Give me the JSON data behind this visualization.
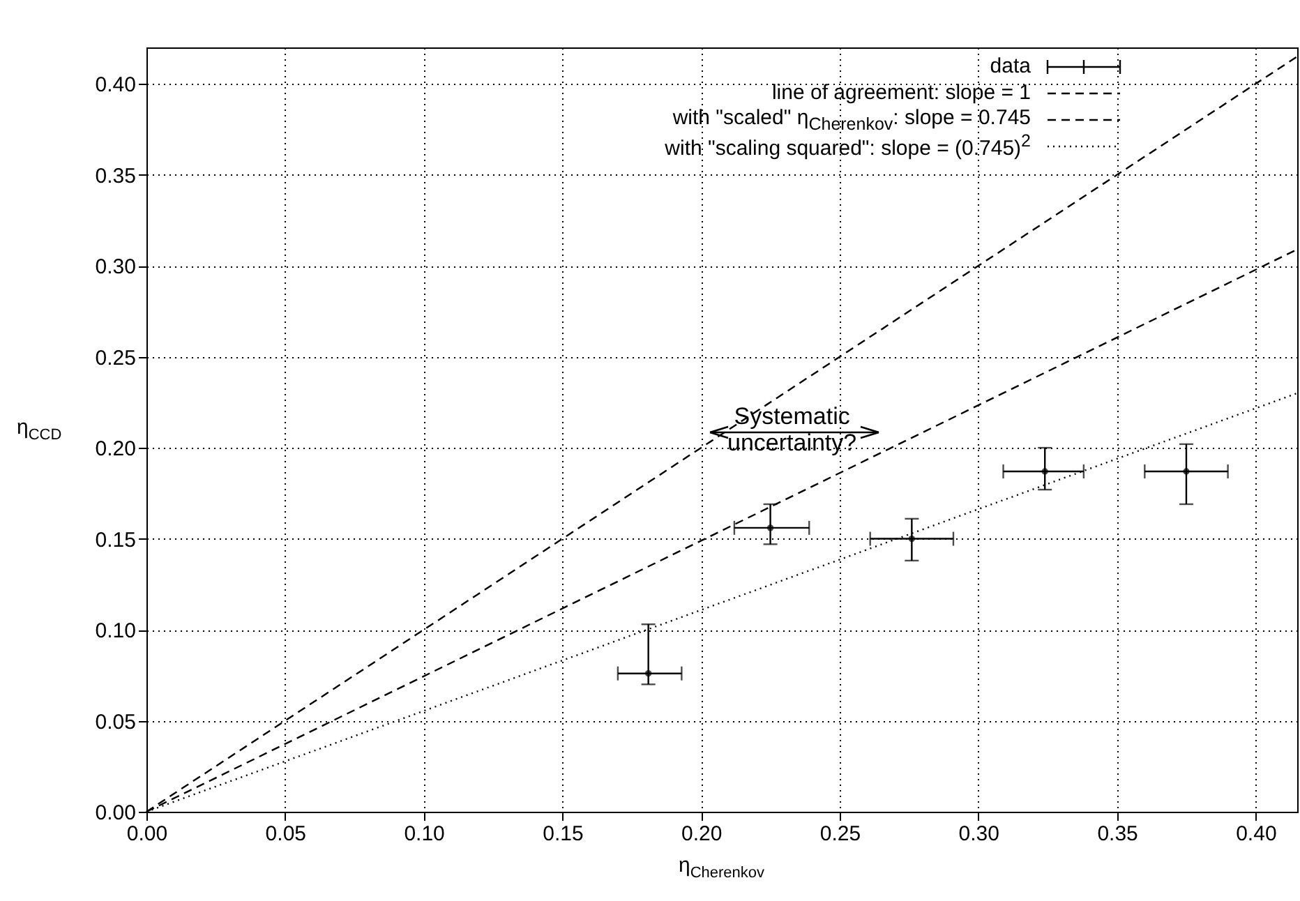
{
  "chart_data": {
    "type": "scatter",
    "xlabel": "η$_{Cherenkov}$",
    "ylabel": "η$_{CCD}$",
    "xlim": [
      0,
      0.415
    ],
    "ylim": [
      0,
      0.42
    ],
    "xticks": [
      {
        "value": 0,
        "label": "0.00"
      },
      {
        "value": 0.05,
        "label": "0.05"
      },
      {
        "value": 0.1,
        "label": "0.10"
      },
      {
        "value": 0.15,
        "label": "0.15"
      },
      {
        "value": 0.2,
        "label": "0.20"
      },
      {
        "value": 0.25,
        "label": "0.25"
      },
      {
        "value": 0.3,
        "label": "0.30"
      },
      {
        "value": 0.35,
        "label": "0.35"
      },
      {
        "value": 0.4,
        "label": "0.40"
      }
    ],
    "yticks": [
      {
        "value": 0,
        "label": "0.00"
      },
      {
        "value": 0.05,
        "label": "0.05"
      },
      {
        "value": 0.1,
        "label": "0.10"
      },
      {
        "value": 0.15,
        "label": "0.15"
      },
      {
        "value": 0.2,
        "label": "0.20"
      },
      {
        "value": 0.25,
        "label": "0.25"
      },
      {
        "value": 0.3,
        "label": "0.30"
      },
      {
        "value": 0.35,
        "label": "0.35"
      },
      {
        "value": 0.4,
        "label": "0.40"
      }
    ],
    "grid": true,
    "legend": "top right",
    "annotations": [
      "Systematic uncertainty?"
    ],
    "series": [
      {
        "name": "data",
        "color": "#000000",
        "x": [
          0.181,
          0.225,
          0.276,
          0.324,
          0.375
        ],
        "values": [
          0.076,
          0.156,
          0.15,
          0.187,
          0.187
        ],
        "errors": [
          [
            0.07,
            0.103
          ],
          [
            0.147,
            0.169
          ],
          [
            0.138,
            0.161
          ],
          [
            0.177,
            0.2
          ],
          [
            0.169,
            0.202
          ]
        ],
        "xerrors": [
          [
            0.17,
            0.193
          ],
          [
            0.212,
            0.239
          ],
          [
            0.261,
            0.291
          ],
          [
            0.309,
            0.338
          ],
          [
            0.36,
            0.39
          ]
        ]
      },
      {
        "type": "line",
        "name": "line of agreement: slope = 1",
        "color": "#000000",
        "line_style": "dashed",
        "x": [
          0,
          0.415
        ],
        "values": [
          0,
          0.415
        ]
      },
      {
        "type": "line",
        "name": "with \"scaled\" η$_{Cherenkov}$: slope = 0.745",
        "color": "#000000",
        "line_style": "dashed",
        "x": [
          0,
          0.415
        ],
        "values": [
          0,
          0.309
        ]
      },
      {
        "type": "line",
        "name": "with \"scaling squared\": slope = (0.745)$^{2}$",
        "color": "#000000",
        "line_style": "dotted",
        "x": [
          0,
          0.415
        ],
        "values": [
          0,
          0.23
        ]
      }
    ]
  }
}
